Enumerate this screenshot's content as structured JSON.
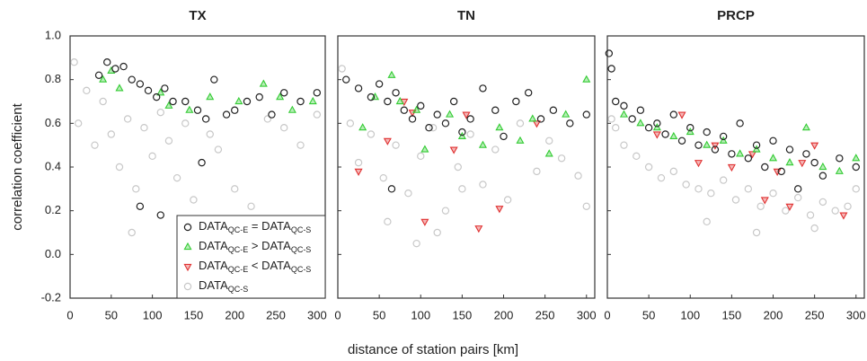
{
  "chart_data": [
    {
      "type": "scatter",
      "title": "TX",
      "ylabel": "correlation coefficient",
      "xlim": [
        0,
        310
      ],
      "ylim": [
        -0.2,
        1.0
      ],
      "xticks": [
        0,
        50,
        100,
        150,
        200,
        250,
        300
      ],
      "yticks": [
        {
          "value": 1,
          "label": "1.0"
        },
        0.8,
        0.6,
        0.4,
        0.2,
        {
          "value": 0,
          "label": "0.0"
        },
        -0.2
      ],
      "legend": "lower right",
      "series": [
        {
          "name": [
            "DATA",
            "QC-E",
            " = DATA",
            "QC-S"
          ],
          "color": "#222222",
          "marker": "circle",
          "x": [
            35,
            45,
            55,
            65,
            75,
            85,
            95,
            105,
            115,
            125,
            140,
            155,
            165,
            175,
            190,
            200,
            215,
            230,
            245,
            260,
            280,
            300,
            160,
            85,
            110
          ],
          "values": [
            0.82,
            0.88,
            0.85,
            0.86,
            0.8,
            0.78,
            0.75,
            0.72,
            0.76,
            0.7,
            0.7,
            0.66,
            0.62,
            0.8,
            0.64,
            0.66,
            0.7,
            0.72,
            0.64,
            0.74,
            0.7,
            0.74,
            0.42,
            0.22,
            0.18
          ]
        },
        {
          "name": [
            "DATA",
            "QC-E",
            " > DATA",
            "QC-S"
          ],
          "color": "#33cc33",
          "marker": "triangle-up",
          "x": [
            40,
            50,
            60,
            110,
            120,
            145,
            170,
            205,
            235,
            255,
            270,
            295
          ],
          "values": [
            0.8,
            0.84,
            0.76,
            0.74,
            0.68,
            0.66,
            0.72,
            0.7,
            0.78,
            0.72,
            0.66,
            0.7
          ]
        },
        {
          "name": [
            "DATA",
            "QC-E",
            " < DATA",
            "QC-S"
          ],
          "color": "#e03030",
          "marker": "triangle-down",
          "x": [],
          "values": []
        },
        {
          "name": [
            "DATA",
            "QC-S"
          ],
          "color": "#c8c8c8",
          "marker": "circle",
          "x": [
            5,
            10,
            20,
            30,
            40,
            50,
            60,
            70,
            80,
            90,
            100,
            110,
            120,
            130,
            140,
            150,
            170,
            180,
            200,
            220,
            240,
            260,
            280,
            300,
            75
          ],
          "values": [
            0.88,
            0.6,
            0.75,
            0.5,
            0.7,
            0.55,
            0.4,
            0.62,
            0.3,
            0.58,
            0.45,
            0.65,
            0.52,
            0.35,
            0.6,
            0.25,
            0.55,
            0.48,
            0.3,
            0.22,
            0.62,
            0.58,
            0.5,
            0.64,
            0.1
          ]
        }
      ]
    },
    {
      "type": "scatter",
      "title": "TN",
      "xlabel": "distance of station pairs [km]",
      "xlim": [
        0,
        310
      ],
      "ylim": [
        -0.2,
        1.0
      ],
      "xticks": [
        0,
        50,
        100,
        150,
        200,
        250,
        300
      ],
      "series": [
        {
          "color": "#222222",
          "marker": "circle",
          "x": [
            10,
            25,
            40,
            50,
            60,
            70,
            80,
            90,
            100,
            110,
            120,
            130,
            140,
            150,
            160,
            175,
            190,
            200,
            215,
            230,
            245,
            260,
            280,
            300,
            65
          ],
          "values": [
            0.8,
            0.76,
            0.72,
            0.78,
            0.7,
            0.74,
            0.66,
            0.62,
            0.68,
            0.58,
            0.64,
            0.6,
            0.7,
            0.56,
            0.62,
            0.76,
            0.66,
            0.54,
            0.7,
            0.74,
            0.62,
            0.66,
            0.6,
            0.64,
            0.3
          ]
        },
        {
          "color": "#33cc33",
          "marker": "triangle-up",
          "x": [
            30,
            45,
            65,
            75,
            95,
            105,
            135,
            150,
            175,
            195,
            220,
            235,
            255,
            275,
            300
          ],
          "values": [
            0.58,
            0.72,
            0.82,
            0.7,
            0.66,
            0.48,
            0.64,
            0.54,
            0.5,
            0.58,
            0.52,
            0.62,
            0.46,
            0.64,
            0.8
          ]
        },
        {
          "color": "#e03030",
          "marker": "triangle-down",
          "x": [
            25,
            60,
            80,
            90,
            105,
            140,
            155,
            170,
            195,
            240
          ],
          "values": [
            0.38,
            0.52,
            0.7,
            0.65,
            0.15,
            0.48,
            0.64,
            0.12,
            0.21,
            0.6
          ]
        },
        {
          "color": "#c8c8c8",
          "marker": "circle",
          "x": [
            5,
            15,
            25,
            40,
            55,
            70,
            85,
            100,
            115,
            130,
            145,
            160,
            175,
            190,
            205,
            220,
            240,
            255,
            270,
            290,
            300,
            120,
            150,
            60,
            95
          ],
          "values": [
            0.85,
            0.6,
            0.42,
            0.55,
            0.35,
            0.5,
            0.28,
            0.45,
            0.58,
            0.2,
            0.4,
            0.55,
            0.32,
            0.48,
            0.25,
            0.6,
            0.38,
            0.52,
            0.44,
            0.36,
            0.22,
            0.1,
            0.3,
            0.15,
            0.05
          ]
        }
      ]
    },
    {
      "type": "scatter",
      "title": "PRCP",
      "xlim": [
        0,
        310
      ],
      "ylim": [
        -0.2,
        1.0
      ],
      "xticks": [
        0,
        50,
        100,
        150,
        200,
        250,
        300
      ],
      "series": [
        {
          "color": "#222222",
          "marker": "circle",
          "x": [
            2,
            5,
            10,
            20,
            30,
            40,
            50,
            60,
            70,
            80,
            90,
            100,
            110,
            120,
            130,
            140,
            150,
            160,
            170,
            180,
            190,
            200,
            210,
            220,
            230,
            240,
            250,
            260,
            280,
            300
          ],
          "values": [
            0.92,
            0.85,
            0.7,
            0.68,
            0.62,
            0.66,
            0.58,
            0.6,
            0.55,
            0.64,
            0.52,
            0.58,
            0.5,
            0.56,
            0.48,
            0.54,
            0.46,
            0.6,
            0.44,
            0.5,
            0.4,
            0.52,
            0.38,
            0.48,
            0.3,
            0.46,
            0.42,
            0.36,
            0.44,
            0.4
          ]
        },
        {
          "color": "#33cc33",
          "marker": "triangle-up",
          "x": [
            20,
            40,
            60,
            80,
            100,
            120,
            140,
            160,
            180,
            200,
            220,
            240,
            260,
            280,
            300
          ],
          "values": [
            0.64,
            0.6,
            0.58,
            0.54,
            0.56,
            0.5,
            0.52,
            0.46,
            0.48,
            0.44,
            0.42,
            0.58,
            0.4,
            0.38,
            0.44
          ]
        },
        {
          "color": "#e03030",
          "marker": "triangle-down",
          "x": [
            60,
            90,
            110,
            130,
            150,
            175,
            190,
            205,
            220,
            235,
            250,
            285
          ],
          "values": [
            0.55,
            0.64,
            0.42,
            0.5,
            0.4,
            0.46,
            0.25,
            0.38,
            0.22,
            0.42,
            0.5,
            0.18
          ]
        },
        {
          "color": "#c8c8c8",
          "marker": "circle",
          "x": [
            5,
            10,
            20,
            35,
            50,
            65,
            80,
            95,
            110,
            125,
            140,
            155,
            170,
            185,
            200,
            215,
            230,
            245,
            260,
            275,
            290,
            300,
            120,
            180,
            250
          ],
          "values": [
            0.62,
            0.58,
            0.5,
            0.45,
            0.4,
            0.35,
            0.38,
            0.32,
            0.3,
            0.28,
            0.34,
            0.25,
            0.3,
            0.22,
            0.28,
            0.2,
            0.26,
            0.18,
            0.24,
            0.2,
            0.22,
            0.3,
            0.15,
            0.1,
            0.12
          ]
        }
      ]
    }
  ]
}
